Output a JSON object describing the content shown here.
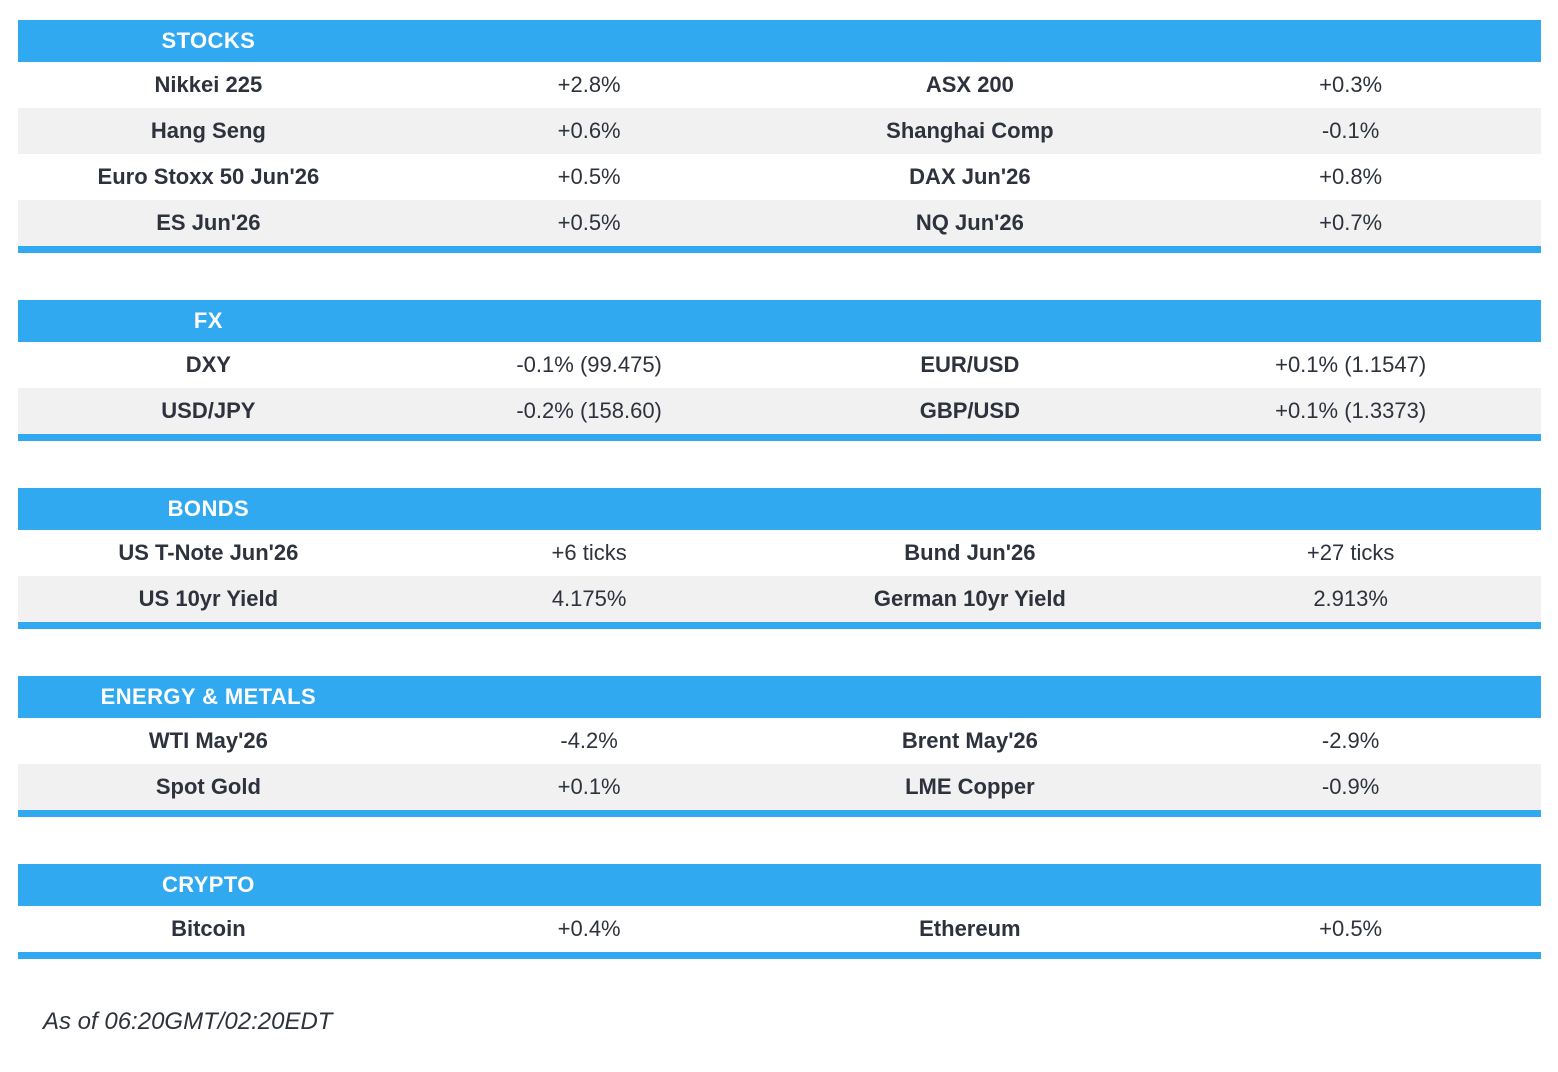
{
  "theme": {
    "accent_blue": "#31a9f0",
    "stripe_gray": "#f1f1f2",
    "text_dark": "#2d323c",
    "header_text": "#ffffff"
  },
  "sections": [
    {
      "title": "STOCKS",
      "rows": [
        {
          "name_l": "Nikkei 225",
          "value_l": "+2.8%",
          "name_r": "ASX 200",
          "value_r": "+0.3%"
        },
        {
          "name_l": "Hang Seng",
          "value_l": "+0.6%",
          "name_r": "Shanghai Comp",
          "value_r": "-0.1%"
        },
        {
          "name_l": "Euro Stoxx 50 Jun'26",
          "value_l": "+0.5%",
          "name_r": "DAX Jun'26",
          "value_r": "+0.8%"
        },
        {
          "name_l": "ES Jun'26",
          "value_l": "+0.5%",
          "name_r": "NQ Jun'26",
          "value_r": "+0.7%"
        }
      ]
    },
    {
      "title": "FX",
      "rows": [
        {
          "name_l": "DXY",
          "value_l": "-0.1% (99.475)",
          "name_r": "EUR/USD",
          "value_r": "+0.1% (1.1547)"
        },
        {
          "name_l": "USD/JPY",
          "value_l": "-0.2% (158.60)",
          "name_r": "GBP/USD",
          "value_r": "+0.1% (1.3373)"
        }
      ]
    },
    {
      "title": "BONDS",
      "rows": [
        {
          "name_l": "US T-Note Jun'26",
          "value_l": "+6 ticks",
          "name_r": "Bund Jun'26",
          "value_r": "+27 ticks"
        },
        {
          "name_l": "US 10yr Yield",
          "value_l": "4.175%",
          "name_r": "German 10yr Yield",
          "value_r": "2.913%"
        }
      ]
    },
    {
      "title": "ENERGY & METALS",
      "rows": [
        {
          "name_l": "WTI May'26",
          "value_l": "-4.2%",
          "name_r": "Brent May'26",
          "value_r": "-2.9%"
        },
        {
          "name_l": "Spot Gold",
          "value_l": "+0.1%",
          "name_r": "LME Copper",
          "value_r": "-0.9%"
        }
      ]
    },
    {
      "title": "CRYPTO",
      "rows": [
        {
          "name_l": "Bitcoin",
          "value_l": "+0.4%",
          "name_r": "Ethereum",
          "value_r": "+0.5%"
        }
      ]
    }
  ],
  "footer": {
    "as_of": "As of 06:20GMT/02:20EDT"
  }
}
